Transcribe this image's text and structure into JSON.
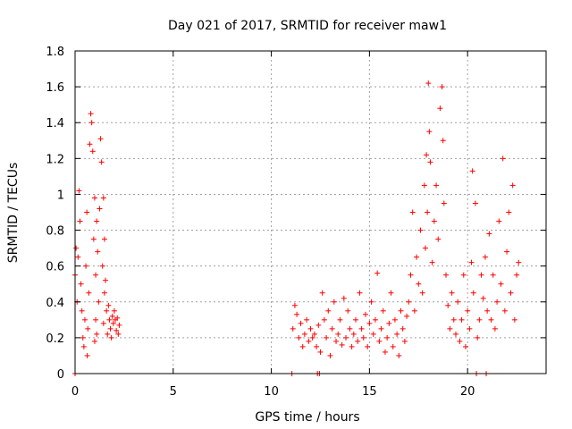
{
  "chart_data": {
    "type": "scatter",
    "title": "Day 021 of 2017, SRMTID for receiver maw1",
    "xlabel": "GPS time / hours",
    "ylabel": "SRMTID / TECUs",
    "xlim": [
      0,
      24
    ],
    "ylim": [
      0,
      1.8
    ],
    "grid": true,
    "marker": "+",
    "series_color": "#ff0000",
    "x_ticks": [
      0,
      5,
      10,
      15,
      20
    ],
    "x_tick_labels": [
      "0",
      "5",
      "10",
      "15",
      "20"
    ],
    "y_ticks": [
      0,
      0.2,
      0.4,
      0.6,
      0.8,
      1.0,
      1.2,
      1.4,
      1.6,
      1.8
    ],
    "y_tick_labels": [
      "0",
      "0.2",
      "0.4",
      "0.6",
      "0.8",
      "1",
      "1.2",
      "1.4",
      "1.6",
      "1.8"
    ],
    "series": [
      {
        "name": "SRMTID",
        "x": [
          0.0,
          0.05,
          0.1,
          0.15,
          0.2,
          0.25,
          0.3,
          0.35,
          0.4,
          0.45,
          0.5,
          0.55,
          0.6,
          0.62,
          0.65,
          0.7,
          0.75,
          0.8,
          0.85,
          0.9,
          0.95,
          1.0,
          1.0,
          1.05,
          1.05,
          1.1,
          1.1,
          1.15,
          1.2,
          1.25,
          1.3,
          1.35,
          1.4,
          1.45,
          1.45,
          1.5,
          1.5,
          1.55,
          1.6,
          1.65,
          1.7,
          1.75,
          1.8,
          1.85,
          1.9,
          1.95,
          2.0,
          2.05,
          2.1,
          2.15,
          2.2,
          2.25,
          11.1,
          11.2,
          11.3,
          11.4,
          11.5,
          11.6,
          11.7,
          11.8,
          11.9,
          12.0,
          12.1,
          12.2,
          12.3,
          12.4,
          12.5,
          12.6,
          12.7,
          12.8,
          12.9,
          13.0,
          13.1,
          13.2,
          13.3,
          13.4,
          13.5,
          13.6,
          13.7,
          13.8,
          13.9,
          14.0,
          14.1,
          14.2,
          14.3,
          14.4,
          14.5,
          14.6,
          14.7,
          14.8,
          14.9,
          15.0,
          15.1,
          15.2,
          15.3,
          15.4,
          15.5,
          15.6,
          15.7,
          15.8,
          15.9,
          16.0,
          16.1,
          16.2,
          16.3,
          16.4,
          16.5,
          16.6,
          16.7,
          16.8,
          16.9,
          17.0,
          17.1,
          17.2,
          17.3,
          17.4,
          17.5,
          17.6,
          17.7,
          17.8,
          17.85,
          17.9,
          17.95,
          18.0,
          18.05,
          18.1,
          18.2,
          18.3,
          18.4,
          18.5,
          18.6,
          18.7,
          18.75,
          18.8,
          18.9,
          19.0,
          19.1,
          19.2,
          19.3,
          19.4,
          19.5,
          19.6,
          19.7,
          19.8,
          19.9,
          20.0,
          20.1,
          20.2,
          20.25,
          20.3,
          20.4,
          20.5,
          20.6,
          20.7,
          20.8,
          20.9,
          21.0,
          21.1,
          21.2,
          21.3,
          21.4,
          21.5,
          21.6,
          21.7,
          21.8,
          21.9,
          22.0,
          22.1,
          22.2,
          22.3,
          22.4,
          22.5,
          22.6,
          0.0,
          11.05,
          12.35,
          12.45,
          20.45,
          20.95
        ],
        "y": [
          0.55,
          0.7,
          0.4,
          0.65,
          1.02,
          0.85,
          0.5,
          0.35,
          0.2,
          0.15,
          0.3,
          0.6,
          0.9,
          0.1,
          0.25,
          0.45,
          1.28,
          1.45,
          1.4,
          1.24,
          0.75,
          0.98,
          0.18,
          0.55,
          0.3,
          0.22,
          0.85,
          0.68,
          0.4,
          0.92,
          1.31,
          1.18,
          0.6,
          0.98,
          0.28,
          0.75,
          0.45,
          0.52,
          0.35,
          0.22,
          0.38,
          0.3,
          0.25,
          0.2,
          0.32,
          0.28,
          0.35,
          0.3,
          0.24,
          0.31,
          0.22,
          0.27,
          0.25,
          0.38,
          0.33,
          0.2,
          0.28,
          0.15,
          0.22,
          0.3,
          0.18,
          0.25,
          0.2,
          0.22,
          0.15,
          0.27,
          0.12,
          0.45,
          0.3,
          0.2,
          0.35,
          0.1,
          0.25,
          0.4,
          0.18,
          0.22,
          0.3,
          0.16,
          0.42,
          0.2,
          0.35,
          0.25,
          0.15,
          0.22,
          0.3,
          0.18,
          0.45,
          0.25,
          0.2,
          0.33,
          0.15,
          0.28,
          0.4,
          0.22,
          0.3,
          0.56,
          0.18,
          0.25,
          0.35,
          0.12,
          0.2,
          0.28,
          0.45,
          0.15,
          0.3,
          0.22,
          0.1,
          0.35,
          0.25,
          0.18,
          0.32,
          0.4,
          0.55,
          0.9,
          0.35,
          0.65,
          0.5,
          0.8,
          0.45,
          1.05,
          0.7,
          1.22,
          0.9,
          1.62,
          1.35,
          1.18,
          0.62,
          0.85,
          1.05,
          0.75,
          1.48,
          1.6,
          1.3,
          0.95,
          0.55,
          0.38,
          0.25,
          0.45,
          0.3,
          0.22,
          0.4,
          0.18,
          0.3,
          0.55,
          0.15,
          0.35,
          0.25,
          0.62,
          1.13,
          0.45,
          0.95,
          0.2,
          0.3,
          0.55,
          0.42,
          0.65,
          0.35,
          0.78,
          0.3,
          0.55,
          0.25,
          0.4,
          0.85,
          0.5,
          1.2,
          0.35,
          0.68,
          0.9,
          0.45,
          1.05,
          0.3,
          0.55,
          0.62,
          0.0,
          0.0,
          0.0,
          0.0,
          0.0,
          0.0
        ]
      }
    ]
  }
}
